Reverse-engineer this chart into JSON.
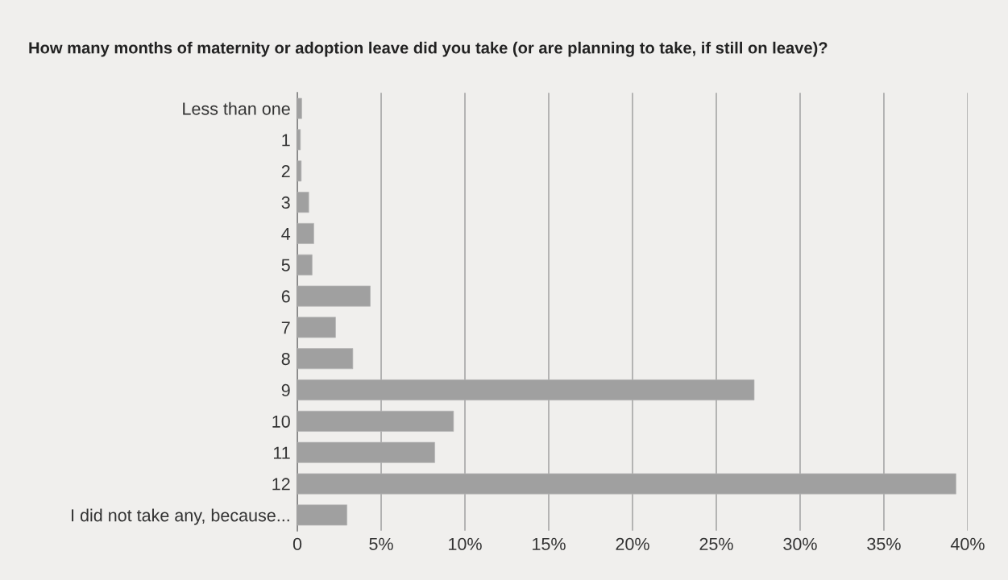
{
  "chart_data": {
    "type": "bar",
    "orientation": "horizontal",
    "title": "How many months of maternity or adoption leave did you take (or are planning to take, if still on leave)?",
    "categories": [
      "Less than one",
      "1",
      "2",
      "3",
      "4",
      "5",
      "6",
      "7",
      "8",
      "9",
      "10",
      "11",
      "12",
      "I did not take any, because..."
    ],
    "values": [
      0.26,
      0.18,
      0.23,
      0.68,
      0.98,
      0.88,
      4.35,
      2.28,
      3.31,
      27.26,
      9.32,
      8.2,
      39.3,
      2.96
    ],
    "color": "#a0a0a0",
    "xlim": [
      0,
      40
    ],
    "xticks": [
      0,
      {
        "value": 5,
        "label": "5%"
      },
      {
        "value": 10,
        "label": "10%"
      },
      {
        "value": 15,
        "label": "15%"
      },
      {
        "value": 20,
        "label": "20%"
      },
      {
        "value": 25,
        "label": "25%"
      },
      {
        "value": 30,
        "label": "30%"
      },
      {
        "value": 35,
        "label": "35%"
      },
      {
        "value": 40,
        "label": "40%"
      }
    ],
    "grid": "x"
  }
}
